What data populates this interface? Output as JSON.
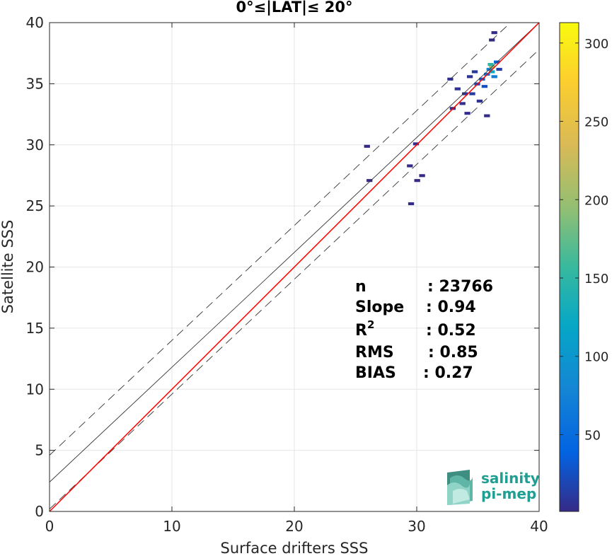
{
  "chart_data": {
    "type": "heatmap",
    "title": "0°≤|LAT|≤ 20°",
    "xlabel": "Surface drifters SSS",
    "ylabel": "Satellite SSS",
    "xlim": [
      0,
      40
    ],
    "ylim": [
      0,
      40
    ],
    "xticks": [
      0,
      10,
      20,
      30,
      40
    ],
    "yticks": [
      0,
      5,
      10,
      15,
      20,
      25,
      30,
      35,
      40
    ],
    "grid": true,
    "colorbar": {
      "min": 1,
      "max": 313,
      "ticks": [
        50,
        100,
        150,
        200,
        250,
        300
      ],
      "colormap": "parula"
    },
    "lines": [
      {
        "kind": "identity",
        "slope": 1,
        "intercept": 0,
        "color": "#444444",
        "style": "solid",
        "hidden": true
      },
      {
        "kind": "fit",
        "slope": 0.94,
        "intercept": 2.4,
        "color": "#333333",
        "style": "solid"
      },
      {
        "kind": "fit-plus-2std",
        "slope": 0.94,
        "intercept": 4.6,
        "color": "#333333",
        "style": "dashed"
      },
      {
        "kind": "fit-minus-2std",
        "slope": 0.94,
        "intercept": 0.2,
        "color": "#333333",
        "style": "dashed"
      },
      {
        "kind": "one-to-one",
        "slope": 1,
        "intercept": 0,
        "color": "#ff0000",
        "style": "solid"
      }
    ],
    "density_cells": [
      {
        "x": 34.2,
        "y": 35.6,
        "count": 6
      },
      {
        "x": 34.8,
        "y": 35.0,
        "count": 20
      },
      {
        "x": 35.2,
        "y": 35.4,
        "count": 30
      },
      {
        "x": 35.6,
        "y": 35.8,
        "count": 55
      },
      {
        "x": 35.8,
        "y": 36.2,
        "count": 80
      },
      {
        "x": 36.0,
        "y": 36.0,
        "count": 120
      },
      {
        "x": 36.0,
        "y": 36.4,
        "count": 200
      },
      {
        "x": 35.9,
        "y": 36.6,
        "count": 150
      },
      {
        "x": 36.2,
        "y": 35.6,
        "count": 70
      },
      {
        "x": 35.4,
        "y": 34.8,
        "count": 25
      },
      {
        "x": 36.4,
        "y": 36.8,
        "count": 40
      },
      {
        "x": 33.8,
        "y": 34.2,
        "count": 8
      },
      {
        "x": 33.2,
        "y": 34.6,
        "count": 5
      },
      {
        "x": 34.6,
        "y": 36.0,
        "count": 10
      },
      {
        "x": 36.6,
        "y": 36.2,
        "count": 15
      },
      {
        "x": 35.0,
        "y": 33.6,
        "count": 6
      },
      {
        "x": 33.6,
        "y": 33.4,
        "count": 4
      },
      {
        "x": 36.0,
        "y": 38.6,
        "count": 3
      },
      {
        "x": 36.2,
        "y": 39.2,
        "count": 2
      },
      {
        "x": 34.0,
        "y": 32.6,
        "count": 3
      },
      {
        "x": 32.8,
        "y": 33.0,
        "count": 2
      },
      {
        "x": 35.6,
        "y": 32.4,
        "count": 2
      },
      {
        "x": 34.4,
        "y": 34.2,
        "count": 12
      },
      {
        "x": 32.6,
        "y": 35.4,
        "count": 3
      },
      {
        "x": 26.0,
        "y": 27.1,
        "count": 1
      },
      {
        "x": 25.8,
        "y": 29.9,
        "count": 1
      },
      {
        "x": 29.4,
        "y": 25.2,
        "count": 2
      },
      {
        "x": 29.8,
        "y": 30.1,
        "count": 2
      },
      {
        "x": 29.3,
        "y": 28.3,
        "count": 1
      },
      {
        "x": 30.3,
        "y": 27.5,
        "count": 1
      },
      {
        "x": 29.9,
        "y": 27.1,
        "count": 1
      }
    ],
    "stats": [
      {
        "label": "n",
        "value": ": 23766"
      },
      {
        "label": "Slope",
        "value": ": 0.94"
      },
      {
        "label": "R",
        "sup": "2",
        "value": ": 0.52"
      },
      {
        "label": "RMS",
        "value": ": 0.85"
      },
      {
        "label": "BIAS",
        "value": ": 0.27"
      }
    ]
  },
  "logo": {
    "line1": "salinity",
    "line2": "pi-mep"
  }
}
